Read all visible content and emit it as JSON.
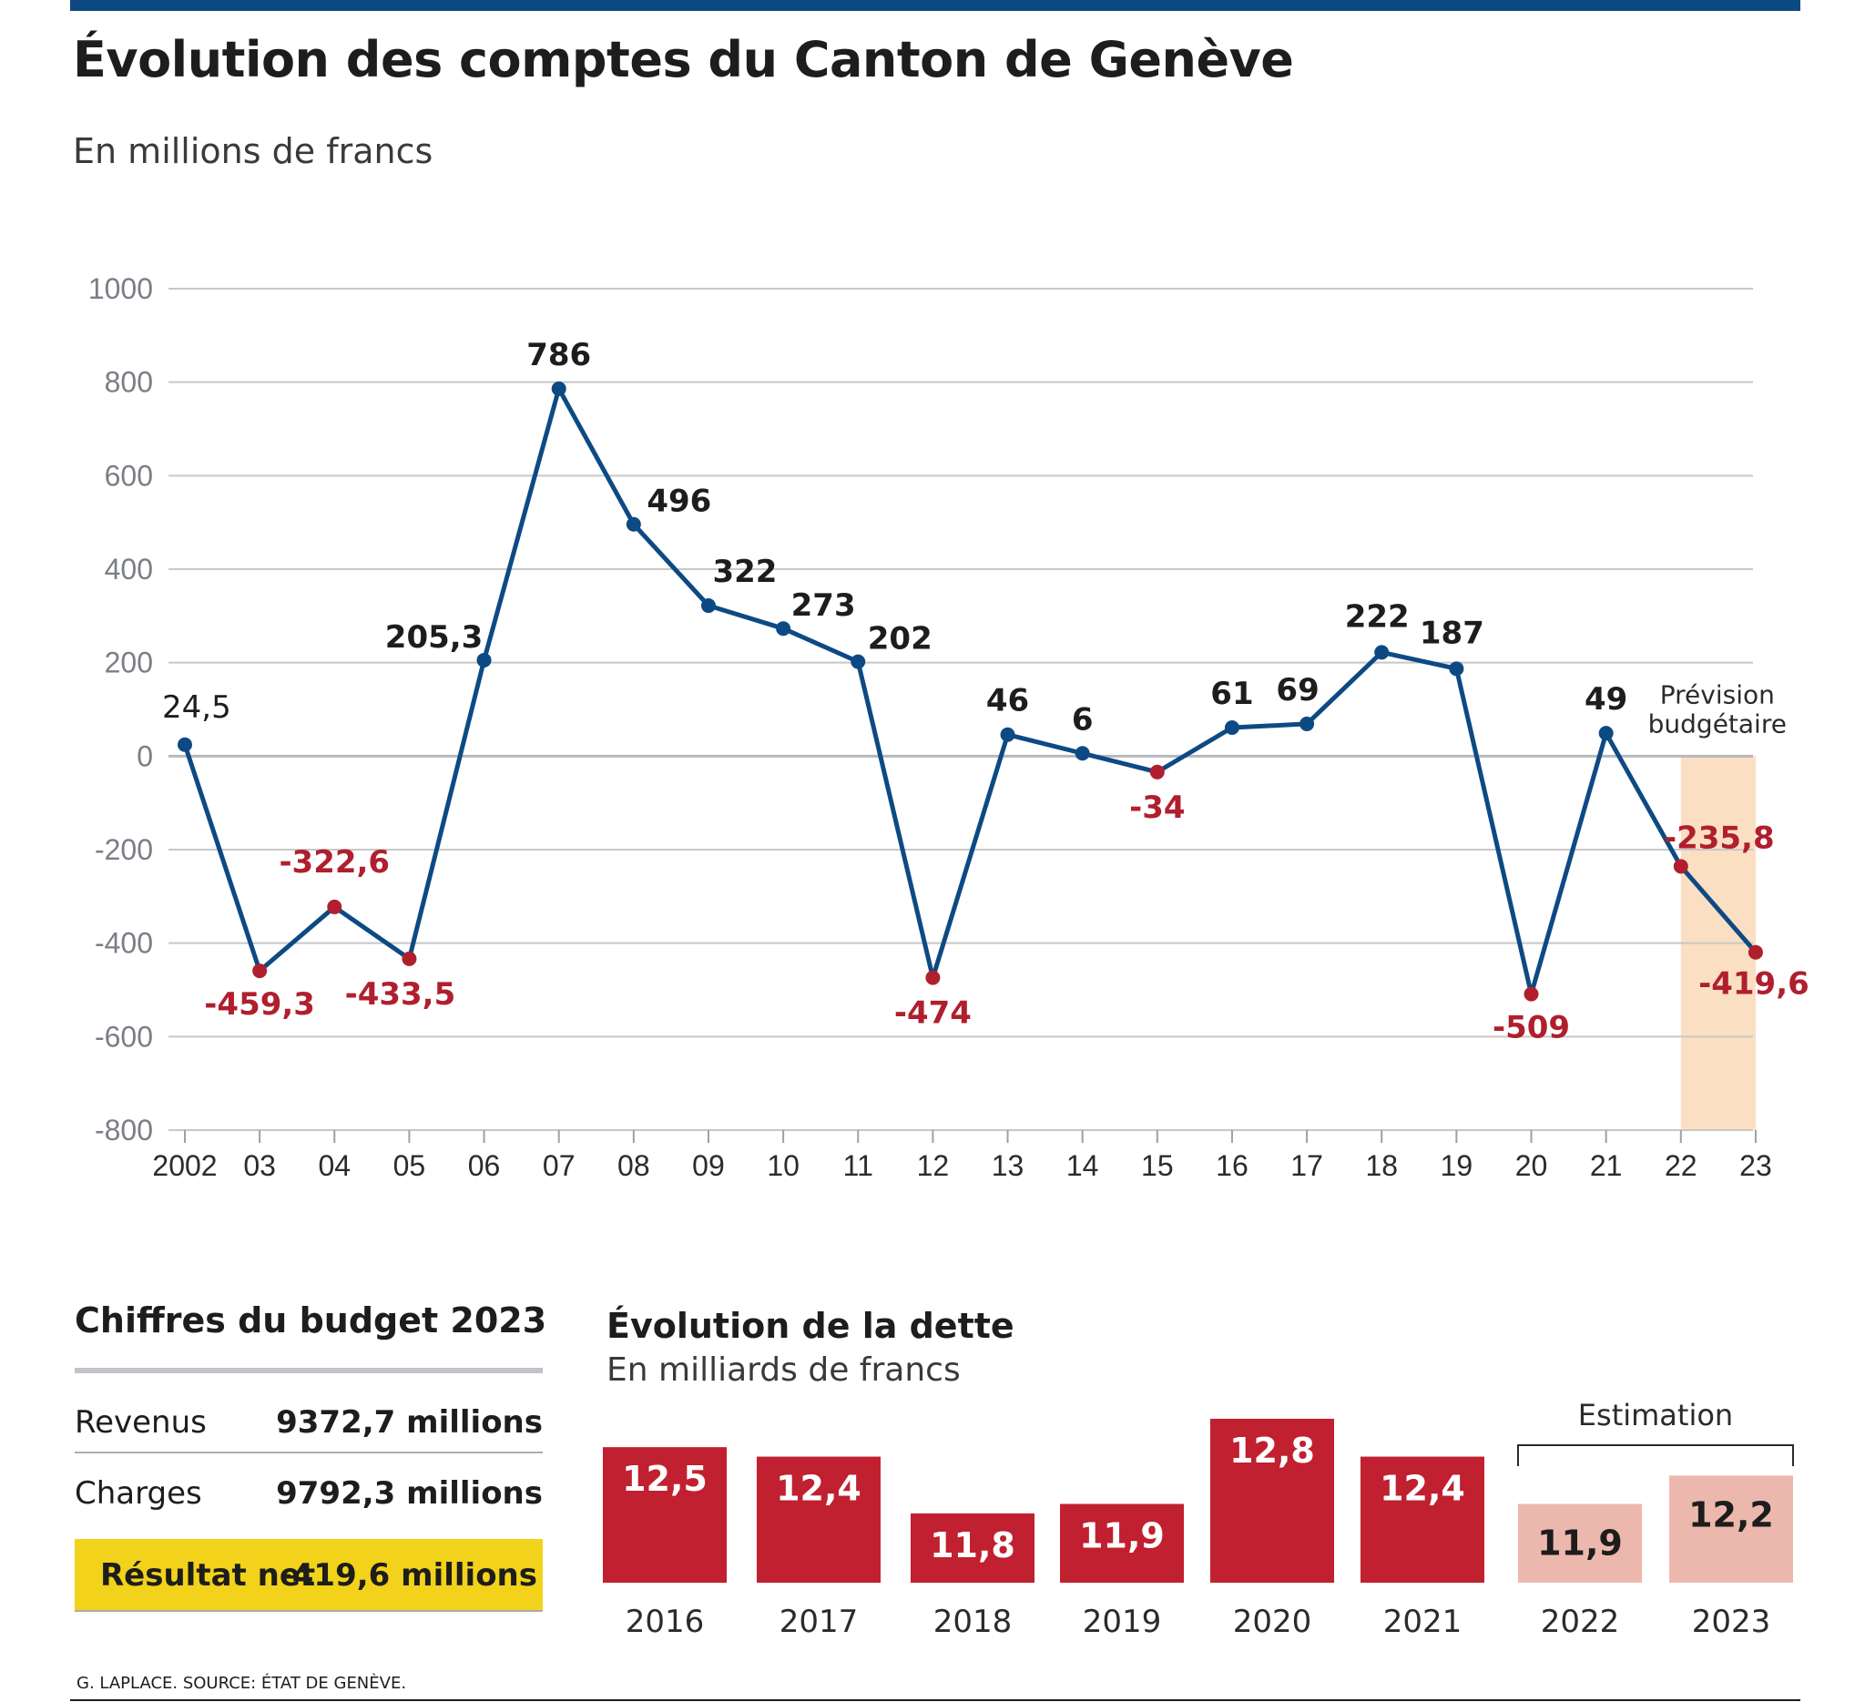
{
  "header": {
    "title": "Évolution des comptes du Canton de Genève",
    "subtitle": "En millions de francs"
  },
  "colors": {
    "line": "#0d4a83",
    "positive_point": "#0d4a83",
    "negative_point": "#b01f2e",
    "positive_label": "#1d1d1b",
    "negative_label": "#b01f2e",
    "grid": "#c8c8c8",
    "forecast_band": "#fbdfc2",
    "debt_bar": "#c0202f",
    "debt_bar_estimate": "#ecb8ae",
    "highlight": "#f2d21a"
  },
  "chart_data": [
    {
      "type": "line",
      "title": "Évolution des comptes du Canton de Genève",
      "ylabel": "En millions de francs",
      "xlabel": "",
      "ylim": [
        -800,
        1000
      ],
      "yticks": [
        "1000",
        "800",
        "600",
        "400",
        "200",
        "0",
        "-200",
        "-400",
        "-600",
        "-800"
      ],
      "categories": [
        "2002",
        "03",
        "04",
        "05",
        "06",
        "07",
        "08",
        "09",
        "10",
        "11",
        "12",
        "13",
        "14",
        "15",
        "16",
        "17",
        "18",
        "19",
        "20",
        "21",
        "22",
        "23"
      ],
      "values": [
        24.5,
        -459.3,
        -322.6,
        -433.5,
        205.3,
        786,
        496,
        322,
        273,
        202,
        -474,
        46,
        6,
        -34,
        61,
        69,
        222,
        187,
        -509,
        49,
        -235.8,
        -419.6
      ],
      "labels": [
        "24,5",
        "-459,3",
        "-322,6",
        "-433,5",
        "205,3",
        "786",
        "496",
        "322",
        "273",
        "202",
        "-474",
        "46",
        "6",
        "-34",
        "61",
        "69",
        "222",
        "187",
        "-509",
        "49",
        "-235,8",
        "-419,6"
      ],
      "forecast_range": [
        "22",
        "23"
      ],
      "forecast_label_line1": "Prévision",
      "forecast_label_line2": "budgétaire"
    },
    {
      "type": "bar",
      "title": "Évolution de la dette",
      "ylabel": "En milliards de francs",
      "categories": [
        "2016",
        "2017",
        "2018",
        "2019",
        "2020",
        "2021",
        "2022",
        "2023"
      ],
      "values": [
        12.5,
        12.4,
        11.8,
        11.9,
        12.8,
        12.4,
        11.9,
        12.2
      ],
      "labels": [
        "12,5",
        "12,4",
        "11,8",
        "11,9",
        "12,8",
        "12,4",
        "11,9",
        "12,2"
      ],
      "estimate": [
        false,
        false,
        false,
        false,
        false,
        false,
        true,
        true
      ],
      "estimate_label": "Estimation"
    }
  ],
  "budget": {
    "title": "Chiffres du budget 2023",
    "rows": [
      {
        "label": "Revenus",
        "value": "9372,7 millions"
      },
      {
        "label": "Charges",
        "value": "9792,3 millions"
      },
      {
        "label": "Résultat net",
        "value": "-419,6 millions"
      }
    ]
  },
  "debt": {
    "title": "Évolution de la dette",
    "subtitle": "En milliards de francs"
  },
  "footer": {
    "source": "G. LAPLACE. SOURCE: ÉTAT DE GENÈVE."
  }
}
